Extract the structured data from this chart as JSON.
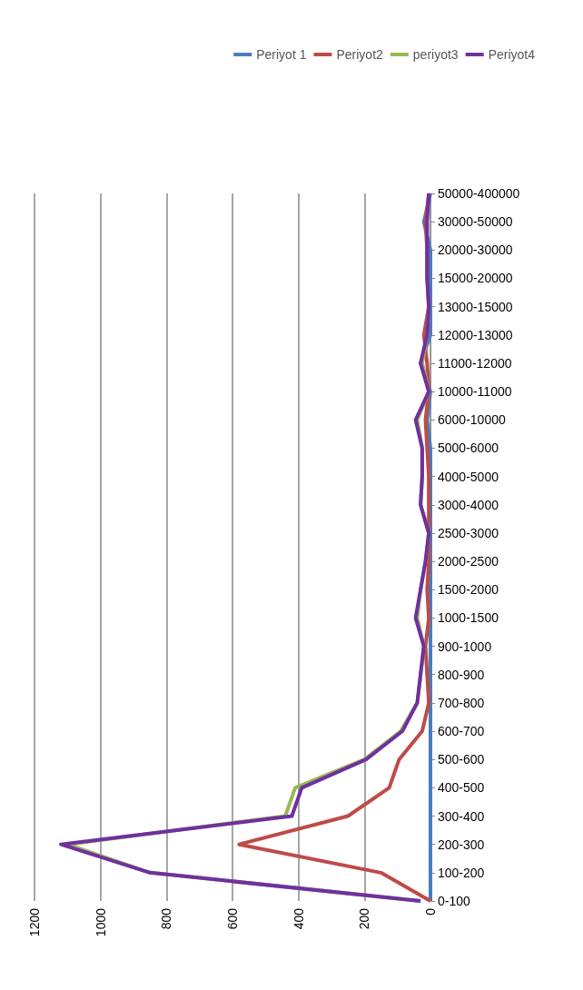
{
  "chart_data": {
    "type": "line",
    "orientation": "horizontal",
    "categories": [
      "50000-400000",
      "30000-50000",
      "20000-30000",
      "15000-20000",
      "13000-15000",
      "12000-13000",
      "11000-12000",
      "10000-11000",
      "6000-10000",
      "5000-6000",
      "4000-5000",
      "3000-4000",
      "2500-3000",
      "2000-2500",
      "1500-2000",
      "1000-1500",
      "900-1000",
      "800-900",
      "700-800",
      "600-700",
      "500-600",
      "400-500",
      "300-400",
      "200-300",
      "100-200",
      "0-100"
    ],
    "series": [
      {
        "name": "Periyot 1",
        "color": "#4a7ebb",
        "values": [
          0,
          20,
          0,
          0,
          0,
          0,
          30,
          0,
          10,
          0,
          0,
          0,
          0,
          0,
          0,
          0,
          0,
          0,
          0,
          0,
          0,
          0,
          0,
          0,
          0,
          0
        ]
      },
      {
        "name": "Periyot2",
        "color": "#be4b48",
        "values": [
          5,
          15,
          10,
          10,
          5,
          20,
          10,
          5,
          15,
          10,
          5,
          5,
          5,
          5,
          10,
          5,
          15,
          10,
          5,
          25,
          95,
          125,
          250,
          580,
          150,
          0
        ]
      },
      {
        "name": "periyot3",
        "color": "#98b954",
        "values": [
          null,
          null,
          null,
          null,
          5,
          10,
          25,
          5,
          40,
          25,
          25,
          30,
          5,
          15,
          30,
          40,
          20,
          30,
          40,
          90,
          200,
          410,
          440,
          1100,
          850,
          30
        ]
      },
      {
        "name": "Periyot4",
        "color": "#7030a0",
        "values": [
          5,
          10,
          10,
          10,
          5,
          10,
          30,
          5,
          45,
          25,
          25,
          30,
          5,
          15,
          30,
          45,
          20,
          30,
          40,
          85,
          195,
          390,
          420,
          1120,
          850,
          30
        ]
      }
    ],
    "xlim": [
      1200,
      0
    ],
    "xticks": [
      0,
      200,
      400,
      600,
      800,
      1000,
      1200
    ],
    "grid": "x",
    "legend": "top right",
    "marker": "none",
    "line_style": "solid"
  }
}
